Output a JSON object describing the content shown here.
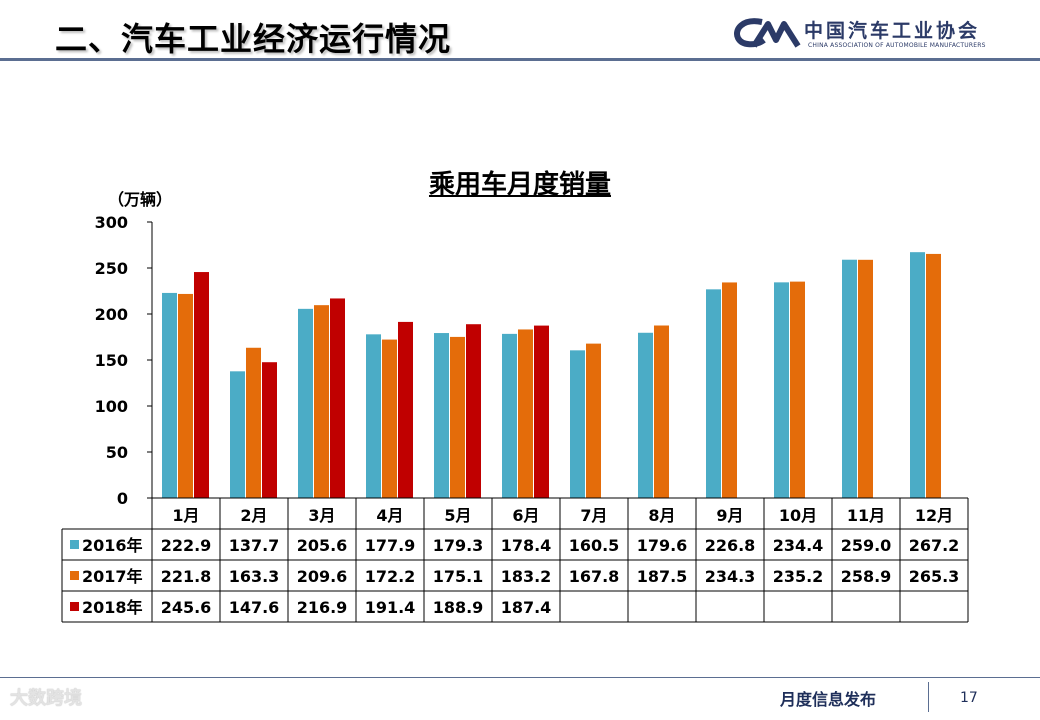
{
  "header": {
    "section_title": "二、汽车工业经济运行情况",
    "logo_mark": "CAM",
    "logo_cn": "中国汽车工业协会",
    "logo_en": "CHINA ASSOCIATION OF AUTOMOBILE MANUFACTURERS"
  },
  "colors": {
    "2016": "#4bacc6",
    "2017": "#e46c0a",
    "2018": "#c00000",
    "rule": "#5b6e91"
  },
  "chart_data": {
    "type": "bar",
    "title": "乘用车月度销量",
    "ylabel": "（万辆）",
    "ylim": [
      0,
      300
    ],
    "yticks": [
      0,
      50,
      100,
      150,
      200,
      250,
      300
    ],
    "categories": [
      "1月",
      "2月",
      "3月",
      "4月",
      "5月",
      "6月",
      "7月",
      "8月",
      "9月",
      "10月",
      "11月",
      "12月"
    ],
    "series": [
      {
        "name": "2016年",
        "values": [
          222.9,
          137.7,
          205.6,
          177.9,
          179.3,
          178.4,
          160.5,
          179.6,
          226.8,
          234.4,
          259.0,
          267.2
        ]
      },
      {
        "name": "2017年",
        "values": [
          221.8,
          163.3,
          209.6,
          172.2,
          175.1,
          183.2,
          167.8,
          187.5,
          234.3,
          235.2,
          258.9,
          265.3
        ]
      },
      {
        "name": "2018年",
        "values": [
          245.6,
          147.6,
          216.9,
          191.4,
          188.9,
          187.4,
          null,
          null,
          null,
          null,
          null,
          null
        ]
      }
    ],
    "table": true,
    "grid": false
  },
  "footer": {
    "label": "月度信息发布",
    "page": "17",
    "watermark": "大数跨境"
  }
}
